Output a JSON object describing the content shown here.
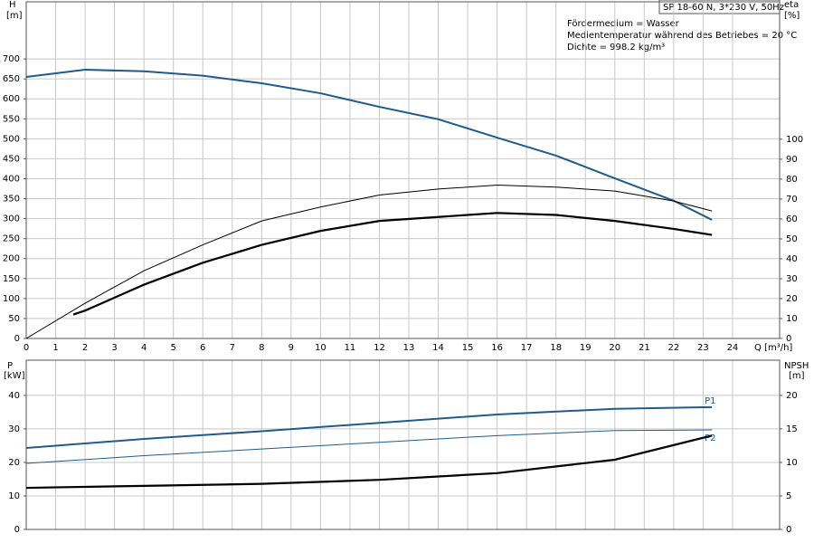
{
  "chart_data": [
    {
      "type": "line",
      "title": "SP 18-60 N, 3*230 V, 50Hz",
      "annotations": [
        "Fördermedium = Wasser",
        "Medientemperatur während des Betriebes = 20 °C",
        "Dichte = 998.2 kg/m³"
      ],
      "x_label": "Q [m³/h]",
      "y_label": "H",
      "y_unit": "[m]",
      "y2_label": "eta",
      "y2_unit": "[%]",
      "xlim": [
        0,
        25.6
      ],
      "xticks": [
        0,
        1,
        2,
        3,
        4,
        5,
        6,
        7,
        8,
        9,
        10,
        11,
        12,
        13,
        14,
        15,
        16,
        17,
        18,
        19,
        20,
        21,
        22,
        23,
        24
      ],
      "ylim": [
        0,
        843
      ],
      "yticks": [
        0,
        50,
        100,
        150,
        200,
        250,
        300,
        350,
        400,
        450,
        500,
        550,
        600,
        650,
        700
      ],
      "y2lim": [
        0,
        169
      ],
      "y2ticks": [
        0,
        10,
        20,
        30,
        40,
        50,
        60,
        70,
        80,
        90,
        100
      ],
      "grid": true,
      "series": [
        {
          "color": "#1f5b8e",
          "linewidth": 2,
          "x": [
            0,
            2,
            4,
            6,
            8,
            10,
            12,
            14,
            16,
            18,
            20,
            22,
            23.3
          ],
          "values": [
            655,
            673,
            669,
            658,
            639,
            614,
            580,
            549,
            503,
            458,
            401,
            345,
            297
          ]
        },
        {
          "color": "#000000",
          "linewidth": 1,
          "axis": "y2",
          "x": [
            0,
            2,
            4,
            6,
            8,
            10,
            12,
            14,
            16,
            18,
            20,
            22,
            23.3
          ],
          "values": [
            0,
            17.7,
            34,
            47,
            59,
            66,
            72,
            75,
            77,
            76,
            74,
            69,
            64
          ]
        },
        {
          "color": "#000000",
          "linewidth": 2.2,
          "axis": "y2",
          "x": [
            1.6,
            2,
            4,
            6,
            8,
            10,
            12,
            14,
            16,
            18,
            20,
            22,
            23.3
          ],
          "values": [
            12,
            14,
            27,
            38,
            47,
            54,
            59,
            61,
            63,
            62,
            59,
            55,
            52
          ]
        }
      ]
    },
    {
      "type": "line",
      "y_label": "P",
      "y_unit": "[kW]",
      "y2_label": "NPSH",
      "y2_unit": "[m]",
      "xlim": [
        0,
        25.6
      ],
      "xticks": [
        0,
        1,
        2,
        3,
        4,
        5,
        6,
        7,
        8,
        9,
        10,
        11,
        12,
        13,
        14,
        15,
        16,
        17,
        18,
        19,
        20,
        21,
        22,
        23,
        24
      ],
      "ylim": [
        0,
        50.5
      ],
      "yticks": [
        0,
        10,
        20,
        30,
        40
      ],
      "y2lim": [
        0,
        25.25
      ],
      "y2ticks": [
        0,
        5,
        10,
        15,
        20
      ],
      "grid": true,
      "series": [
        {
          "name": "P1",
          "color": "#1f5b8e",
          "linewidth": 2,
          "x": [
            0,
            4,
            8,
            12,
            16,
            20,
            23.3
          ],
          "values": [
            24.3,
            27,
            29.3,
            31.8,
            34.3,
            36,
            36.5
          ]
        },
        {
          "name": "P2",
          "color": "#1f5b8e",
          "linewidth": 1,
          "x": [
            0,
            4,
            8,
            12,
            16,
            20,
            23.3
          ],
          "values": [
            19.7,
            22,
            24,
            26,
            28,
            29.5,
            29.7
          ]
        },
        {
          "color": "#000000",
          "linewidth": 2.2,
          "axis": "y2",
          "x": [
            0,
            4,
            8,
            12,
            16,
            20,
            23.3
          ],
          "values": [
            6.2,
            6.5,
            6.8,
            7.4,
            8.4,
            10.4,
            14
          ]
        }
      ]
    }
  ]
}
